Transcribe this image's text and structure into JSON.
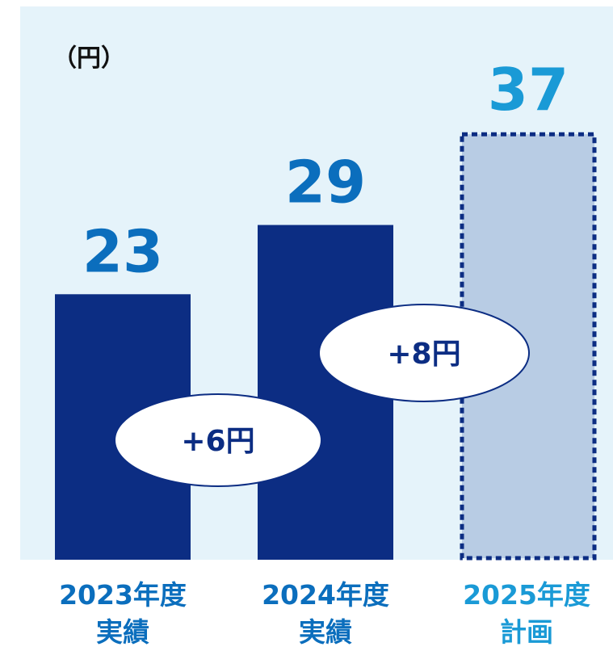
{
  "chart_data": {
    "type": "bar",
    "unit_label": "（円）",
    "categories": [
      [
        "2023年度",
        "実績"
      ],
      [
        "2024年度",
        "実績"
      ],
      [
        "2025年度",
        "計画"
      ]
    ],
    "values": [
      23,
      29,
      37
    ],
    "colors": [
      "#0c2d83",
      "#0c2d83",
      "#b8cce4"
    ],
    "dashed": [
      false,
      false,
      true
    ],
    "label_colors": [
      "#0b6ebd",
      "#0b6ebd",
      "#1a9ad6"
    ],
    "background": "#e5f3fa",
    "ylim": [
      0,
      48
    ],
    "annotations": [
      {
        "text": "+6円",
        "between": [
          0,
          1
        ]
      },
      {
        "text": "+8円",
        "between": [
          1,
          2
        ]
      }
    ]
  }
}
